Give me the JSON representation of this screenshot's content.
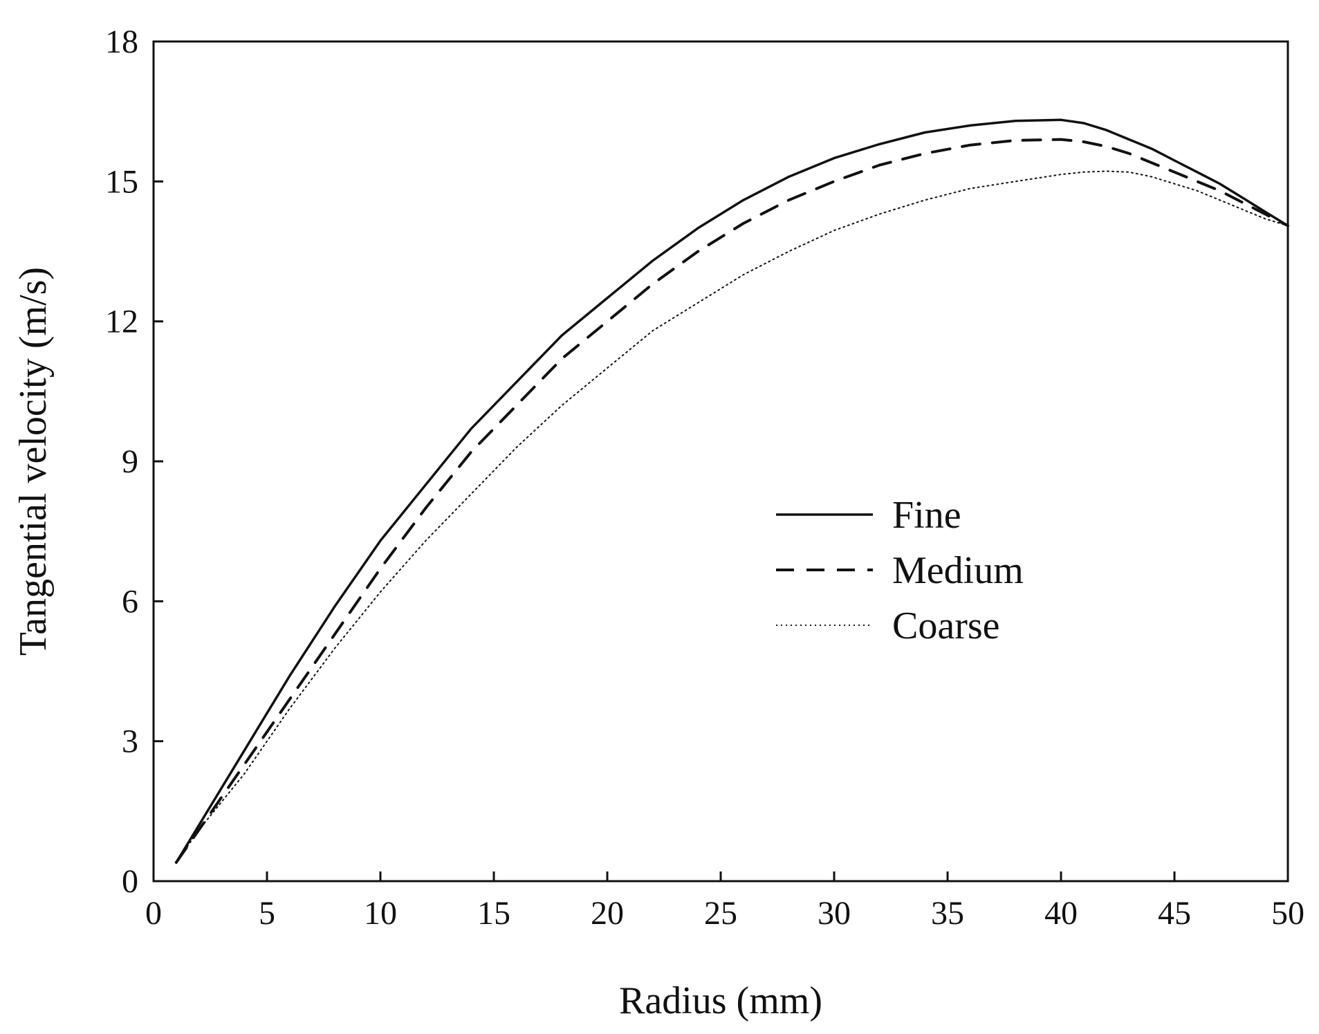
{
  "chart_data": {
    "type": "line",
    "title": "",
    "xlabel": "Radius (mm)",
    "ylabel": "Tangential velocity (m/s)",
    "xlim": [
      0,
      50
    ],
    "ylim": [
      0,
      18
    ],
    "xticks": [
      0,
      5,
      10,
      15,
      20,
      25,
      30,
      35,
      40,
      45,
      50
    ],
    "yticks": [
      0,
      3,
      6,
      9,
      12,
      15,
      18
    ],
    "grid": false,
    "legend_position": "center-right",
    "series": [
      {
        "name": "Fine",
        "style": "solid",
        "x": [
          1,
          2,
          4,
          6,
          8,
          10,
          12,
          14,
          16,
          18,
          20,
          22,
          24,
          26,
          28,
          30,
          32,
          34,
          36,
          38,
          40,
          41,
          42,
          43,
          44,
          45,
          46,
          47,
          48,
          49,
          50
        ],
        "y": [
          0.4,
          1.2,
          2.8,
          4.4,
          5.9,
          7.3,
          8.5,
          9.7,
          10.7,
          11.7,
          12.5,
          13.3,
          14.0,
          14.6,
          15.1,
          15.5,
          15.8,
          16.05,
          16.2,
          16.3,
          16.32,
          16.25,
          16.1,
          15.9,
          15.7,
          15.45,
          15.2,
          14.95,
          14.65,
          14.35,
          14.05
        ]
      },
      {
        "name": "Medium",
        "style": "dashed",
        "x": [
          1,
          2,
          4,
          6,
          8,
          10,
          12,
          14,
          16,
          18,
          20,
          22,
          24,
          26,
          28,
          30,
          32,
          34,
          36,
          38,
          40,
          41,
          42,
          43,
          44,
          45,
          46,
          47,
          48,
          49,
          50
        ],
        "y": [
          0.4,
          1.1,
          2.5,
          3.9,
          5.3,
          6.7,
          8.0,
          9.2,
          10.2,
          11.2,
          12.0,
          12.8,
          13.5,
          14.1,
          14.6,
          15.0,
          15.35,
          15.6,
          15.78,
          15.88,
          15.9,
          15.85,
          15.75,
          15.6,
          15.4,
          15.2,
          15.0,
          14.8,
          14.55,
          14.3,
          14.05
        ]
      },
      {
        "name": "Coarse",
        "style": "dotted",
        "x": [
          1,
          2,
          4,
          6,
          8,
          10,
          12,
          14,
          16,
          18,
          20,
          22,
          24,
          26,
          28,
          30,
          32,
          34,
          36,
          38,
          40,
          41,
          42,
          43,
          44,
          45,
          46,
          47,
          48,
          49,
          50
        ],
        "y": [
          0.4,
          1.1,
          2.3,
          3.7,
          5.0,
          6.2,
          7.3,
          8.3,
          9.3,
          10.2,
          11.0,
          11.8,
          12.4,
          13.0,
          13.5,
          13.95,
          14.3,
          14.6,
          14.85,
          15.0,
          15.15,
          15.2,
          15.22,
          15.2,
          15.1,
          14.95,
          14.8,
          14.6,
          14.4,
          14.2,
          14.05
        ]
      }
    ]
  }
}
